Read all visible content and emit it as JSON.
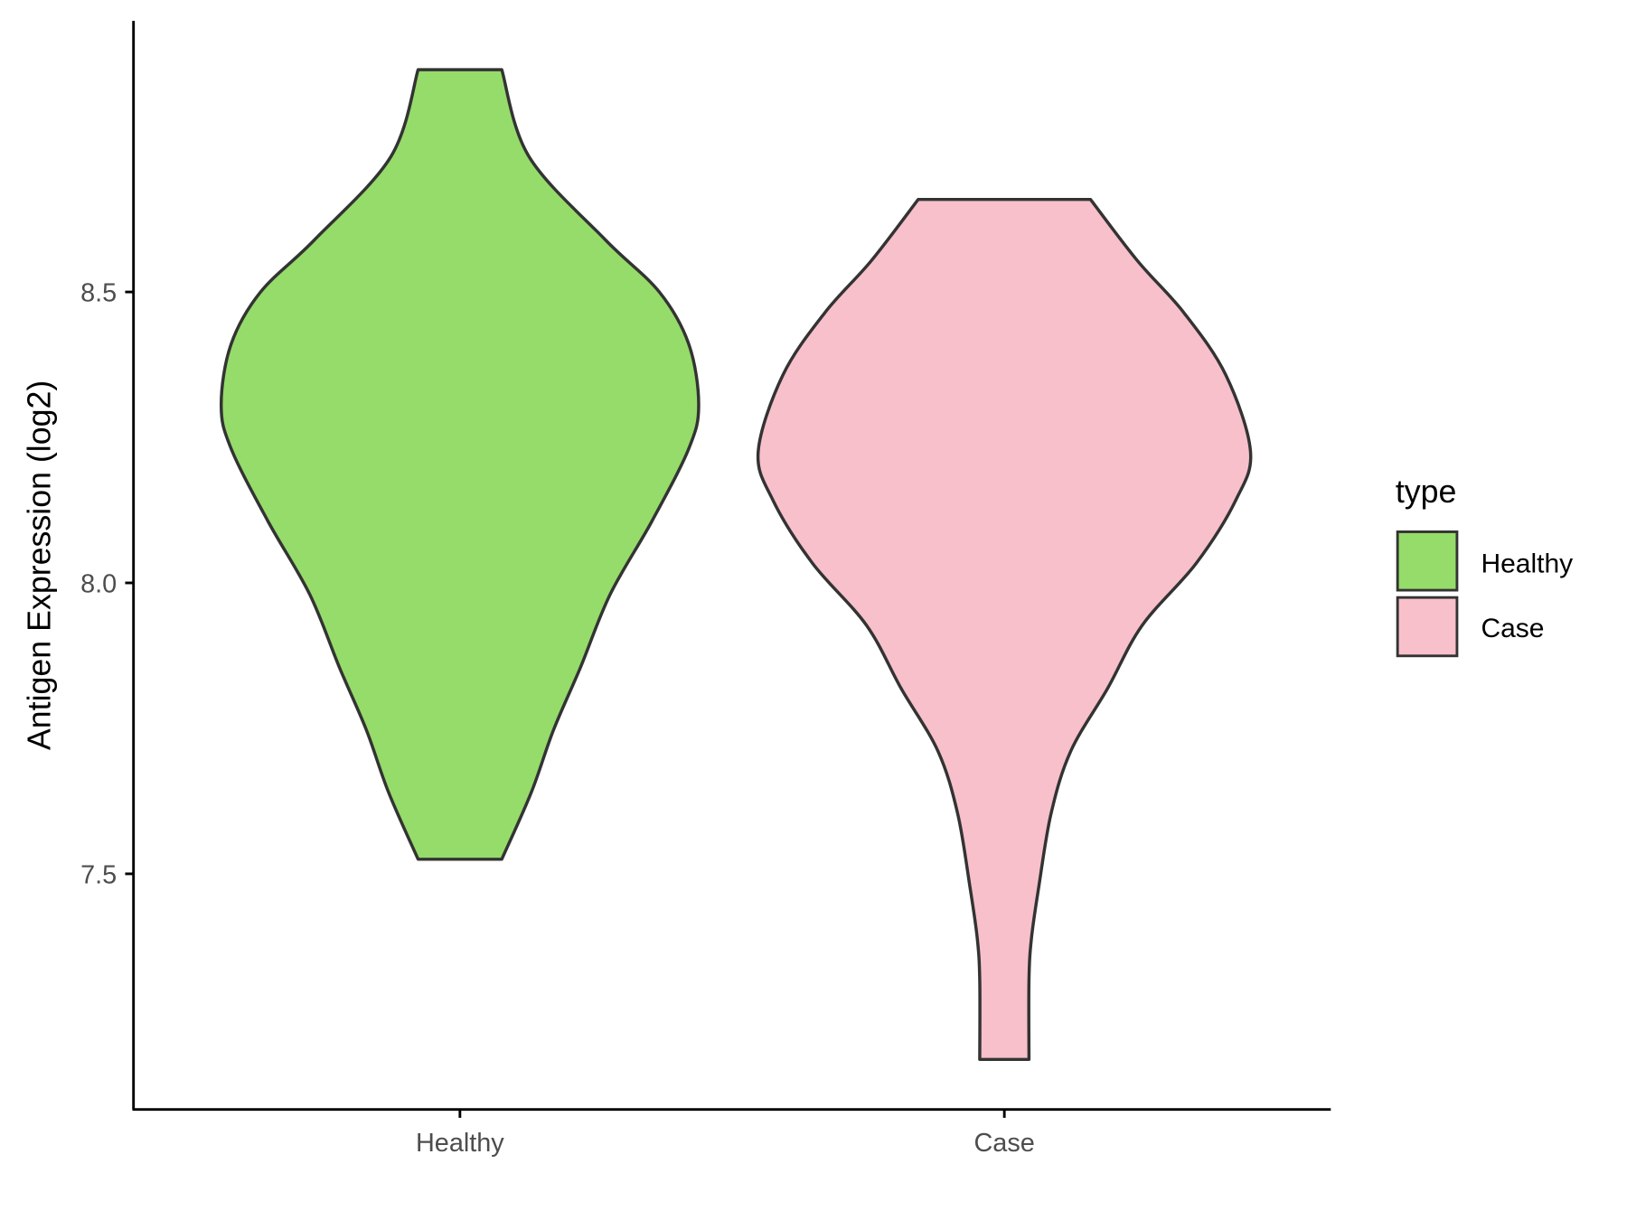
{
  "chart_data": {
    "type": "violin",
    "title": "",
    "xlabel": "",
    "ylabel": "Antigen Expression (log2)",
    "ylim": [
      7.097,
      8.966
    ],
    "yticks": [
      "7.5",
      "8.0",
      "8.5"
    ],
    "ytick_values": [
      7.5,
      8.0,
      8.5
    ],
    "categories": [
      "Healthy",
      "Case"
    ],
    "grid": false,
    "legend": {
      "title": "type",
      "position": "right",
      "entries": [
        "Healthy",
        "Case"
      ]
    },
    "series": [
      {
        "name": "Healthy",
        "color": "#95DC6A",
        "min": 7.525,
        "max": 8.882,
        "density_profile": [
          [
            8.882,
            0.17
          ],
          [
            8.733,
            0.28
          ],
          [
            8.59,
            0.59
          ],
          [
            8.5,
            0.81
          ],
          [
            8.41,
            0.93
          ],
          [
            8.306,
            0.97
          ],
          [
            8.231,
            0.93
          ],
          [
            8.106,
            0.78
          ],
          [
            7.98,
            0.61
          ],
          [
            7.855,
            0.49
          ],
          [
            7.747,
            0.38
          ],
          [
            7.64,
            0.29
          ],
          [
            7.525,
            0.17
          ]
        ]
      },
      {
        "name": "Case",
        "color": "#F7C0CB",
        "min": 7.181,
        "max": 8.659,
        "density_profile": [
          [
            8.659,
            0.35
          ],
          [
            8.554,
            0.54
          ],
          [
            8.464,
            0.73
          ],
          [
            8.357,
            0.9
          ],
          [
            8.226,
            1.0
          ],
          [
            8.142,
            0.94
          ],
          [
            8.034,
            0.78
          ],
          [
            7.927,
            0.56
          ],
          [
            7.819,
            0.42
          ],
          [
            7.711,
            0.27
          ],
          [
            7.604,
            0.19
          ],
          [
            7.478,
            0.14
          ],
          [
            7.389,
            0.11
          ],
          [
            7.317,
            0.1
          ],
          [
            7.181,
            0.1
          ]
        ]
      }
    ],
    "outline_color": "#333333"
  }
}
